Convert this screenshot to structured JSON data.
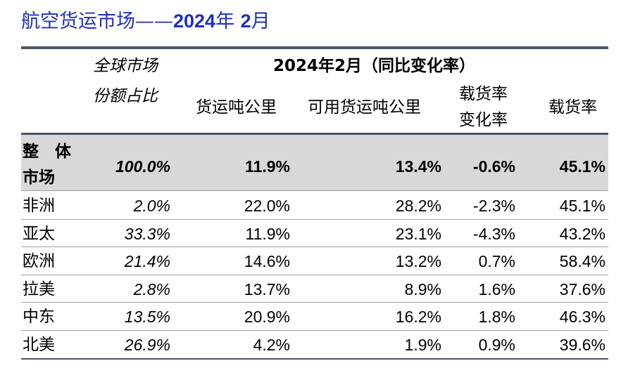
{
  "title": {
    "prefix": "航空货运市场——",
    "year": "2024",
    "mid": "年 ",
    "month": "2",
    "suffix": "月"
  },
  "header": {
    "share_line1": "全球市场",
    "share_line2": "份额占比",
    "group": "2024年2月（同比变化率）",
    "col_rtk": "货运吨公里",
    "col_atk": "可用货运吨公里",
    "col_lfchg_line1": "载货率",
    "col_lfchg_line2": "变化率",
    "col_lf": "载货率"
  },
  "total": {
    "label_line1": "整　体",
    "label_line2": "市场",
    "share": "100.0%",
    "rtk": "11.9%",
    "atk": "13.4%",
    "lfchg": "-0.6%",
    "lf": "45.1%"
  },
  "chart_data": {
    "type": "table",
    "title": "航空货运市场——2024年 2月",
    "columns": [
      "全球市场份额占比",
      "货运吨公里",
      "可用货运吨公里",
      "载货率变化率",
      "载货率"
    ],
    "rows": [
      {
        "region": "非洲",
        "share": "2.0%",
        "rtk": "22.0%",
        "atk": "28.2%",
        "lfchg": "-2.3%",
        "lf": "45.1%"
      },
      {
        "region": "亚太",
        "share": "33.3%",
        "rtk": "11.9%",
        "atk": "23.1%",
        "lfchg": "-4.3%",
        "lf": "43.2%"
      },
      {
        "region": "欧洲",
        "share": "21.4%",
        "rtk": "14.6%",
        "atk": "13.2%",
        "lfchg": "0.7%",
        "lf": "58.4%"
      },
      {
        "region": "拉美",
        "share": "2.8%",
        "rtk": "13.7%",
        "atk": "8.9%",
        "lfchg": "1.6%",
        "lf": "37.6%"
      },
      {
        "region": "中东",
        "share": "13.5%",
        "rtk": "20.9%",
        "atk": "16.2%",
        "lfchg": "1.8%",
        "lf": "46.3%"
      },
      {
        "region": "北美",
        "share": "26.9%",
        "rtk": "4.2%",
        "atk": "1.9%",
        "lfchg": "0.9%",
        "lf": "39.6%"
      }
    ]
  }
}
